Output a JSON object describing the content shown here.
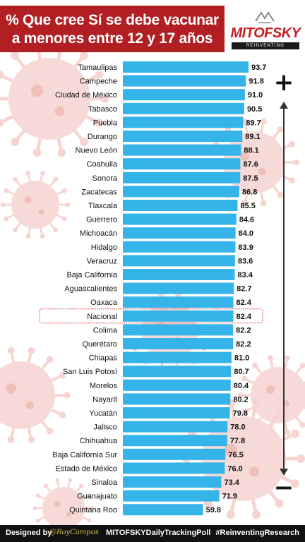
{
  "header": {
    "title_line1": "% Que cree Sí se debe vacunar",
    "title_line2": "a menores entre 12 y 17 años",
    "logo_text": "MITOFSKY",
    "logo_subtext": "REINVENTING RESEARCH"
  },
  "colors": {
    "bar": "#35b4ea",
    "title_band": "#b11f23",
    "highlight_outline": "#e06060",
    "virus": "#f6d4d0"
  },
  "chart_data": {
    "type": "bar",
    "orientation": "horizontal",
    "categories": [
      "Tamaulipas",
      "Campeche",
      "Ciudad de México",
      "Tabasco",
      "Puebla",
      "Durango",
      "Nuevo León",
      "Coahuila",
      "Sonora",
      "Zacatecas",
      "Tlaxcala",
      "Guerrero",
      "Michoacán",
      "Hidalgo",
      "Veracruz",
      "Baja California",
      "Aguascalientes",
      "Oaxaca",
      "Nacional",
      "Colima",
      "Querétaro",
      "Chiapas",
      "San Luis Potosí",
      "Morelos",
      "Nayarit",
      "Yucatán",
      "Jalisco",
      "Chihuahua",
      "Baja California Sur",
      "Estado de México",
      "Sinaloa",
      "Guanajuato",
      "Quintana Roo"
    ],
    "values": [
      93.7,
      91.8,
      91.0,
      90.5,
      89.7,
      89.1,
      88.1,
      87.6,
      87.5,
      86.8,
      85.5,
      84.6,
      84.0,
      83.9,
      83.6,
      83.4,
      82.7,
      82.4,
      82.4,
      82.2,
      82.2,
      81.0,
      80.7,
      80.4,
      80.2,
      79.8,
      78.0,
      77.8,
      76.5,
      76.0,
      73.4,
      71.9,
      59.8
    ],
    "value_labels": [
      "93.7",
      "91.8",
      "91.0",
      "90.5",
      "89.7",
      "89.1",
      "88.1",
      "87.6",
      "87.5",
      "86.8",
      "85.5",
      "84.6",
      "84.0",
      "83.9",
      "83.6",
      "83.4",
      "82.7",
      "82.4",
      "82.4",
      "82.2",
      "82.2",
      "81.0",
      "80.7",
      "80.4",
      "80.2",
      "79.8",
      "78.0",
      "77.8",
      "76.5",
      "76.0",
      "73.4",
      "71.9",
      "59.8"
    ],
    "highlight": "Nacional",
    "scale_markers": {
      "top": "+",
      "bottom": "−"
    },
    "title": "% Que cree Sí se debe vacunar a menores entre 12 y 17 años",
    "xlim": [
      0,
      100
    ]
  },
  "footer": {
    "designed_by": "Designed by",
    "author": "@RoyCampos",
    "poll": "MITOFSKYDailyTrackingPoll",
    "hashtag": "#ReinventingResearch"
  }
}
